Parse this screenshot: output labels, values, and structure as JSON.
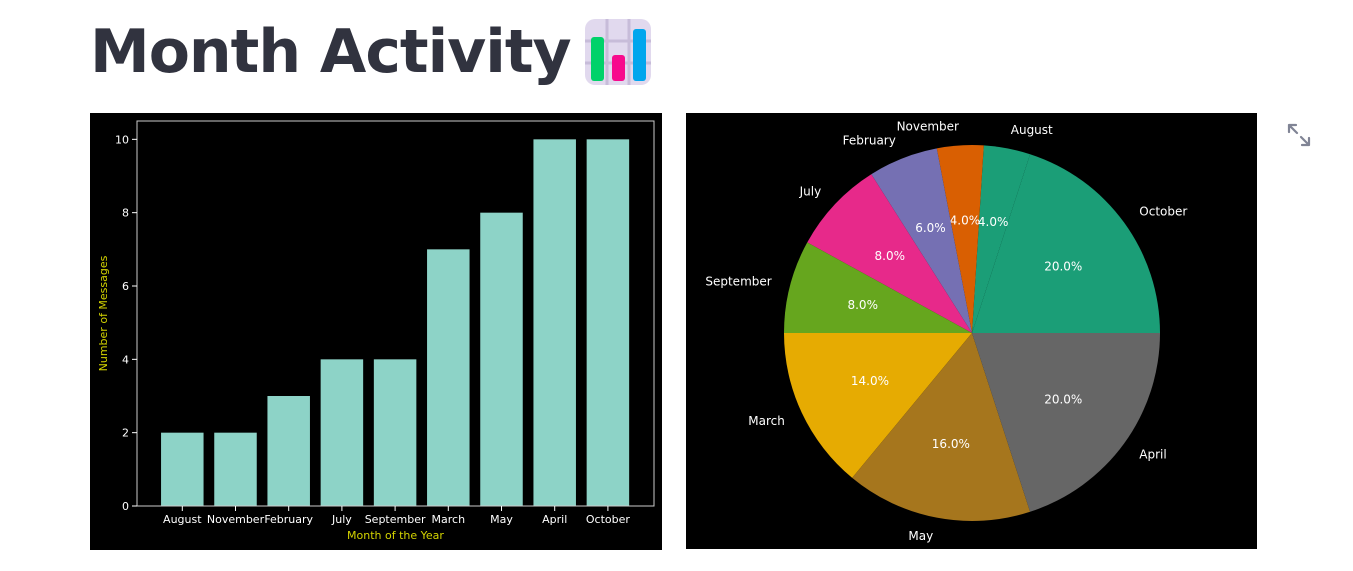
{
  "page": {
    "title": "Month Activity",
    "title_emoji": "bar-chart-emoji-icon"
  },
  "toolbar": {
    "fullscreen_icon": "expand-icon"
  },
  "chart_data": [
    {
      "type": "bar",
      "categories": [
        "August",
        "November",
        "February",
        "July",
        "September",
        "March",
        "May",
        "April",
        "October"
      ],
      "values": [
        2,
        2,
        3,
        4,
        4,
        7,
        8,
        10,
        10
      ],
      "title": "",
      "xlabel": "Month of the Year",
      "ylabel": "Number of Messages",
      "ylim": [
        0,
        10.5
      ],
      "yticks": [
        0,
        2,
        4,
        6,
        8,
        10
      ],
      "grid": false,
      "colors": {
        "background": "#000000",
        "bar": "#8dd3c7",
        "label": "#d4d400",
        "tick": "#ffffff",
        "axis": "#cccccc"
      }
    },
    {
      "type": "pie",
      "title": "",
      "start_angle": 0,
      "counterclock": true,
      "slices": [
        {
          "label": "October",
          "value": 20.0,
          "pct_label": "20.0%",
          "color": "#1b9e77"
        },
        {
          "label": "August",
          "value": 4.0,
          "pct_label": "4.0%",
          "color": "#1b9e77"
        },
        {
          "label": "November",
          "value": 4.0,
          "pct_label": "4.0%",
          "color": "#d95f02"
        },
        {
          "label": "February",
          "value": 6.0,
          "pct_label": "6.0%",
          "color": "#7570b3"
        },
        {
          "label": "July",
          "value": 8.0,
          "pct_label": "8.0%",
          "color": "#e7298a"
        },
        {
          "label": "September",
          "value": 8.0,
          "pct_label": "8.0%",
          "color": "#66a61e"
        },
        {
          "label": "March",
          "value": 14.0,
          "pct_label": "14.0%",
          "color": "#e6ab02"
        },
        {
          "label": "May",
          "value": 16.0,
          "pct_label": "16.0%",
          "color": "#a6761d"
        },
        {
          "label": "April",
          "value": 20.0,
          "pct_label": "20.0%",
          "color": "#666666"
        }
      ],
      "colors": {
        "background": "#000000",
        "label": "#ffffff"
      }
    }
  ]
}
